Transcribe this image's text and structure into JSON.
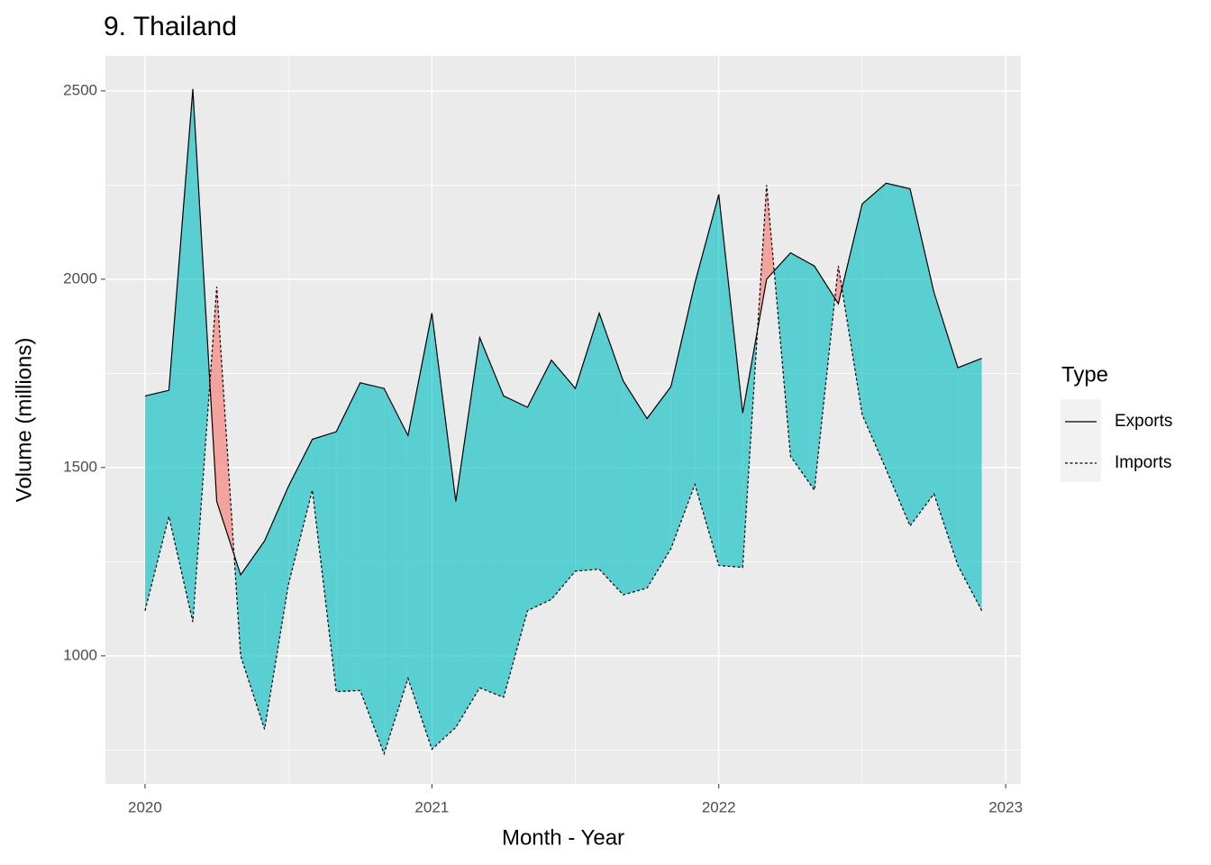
{
  "chart_data": {
    "type": "ribbon-line",
    "title": "9. Thailand",
    "x_label": "Month - Year",
    "y_label": "Volume (millions)",
    "x": [
      2020,
      2020.0833,
      2020.1667,
      2020.25,
      2020.3333,
      2020.4167,
      2020.5,
      2020.5833,
      2020.6667,
      2020.75,
      2020.8333,
      2020.9167,
      2021,
      2021.0833,
      2021.1667,
      2021.25,
      2021.3333,
      2021.4167,
      2021.5,
      2021.5833,
      2021.6667,
      2021.75,
      2021.8333,
      2021.9167,
      2022,
      2022.0833,
      2022.1667,
      2022.25,
      2022.3333,
      2022.4167,
      2022.5,
      2022.5833,
      2022.6667,
      2022.75,
      2022.8333,
      2022.9167
    ],
    "series": [
      {
        "name": "Exports",
        "color": "#000000",
        "dash": "solid",
        "fill": "#00BFC4",
        "values": [
          1690,
          1705,
          2505,
          1410,
          1215,
          1305,
          1450,
          1575,
          1595,
          1725,
          1710,
          1585,
          1910,
          1410,
          1845,
          1690,
          1660,
          1785,
          1710,
          1910,
          1730,
          1630,
          1715,
          1990,
          2225,
          1645,
          2000,
          2070,
          2035,
          1935,
          2200,
          2255,
          2240,
          1965,
          1765,
          1790
        ]
      },
      {
        "name": "Imports",
        "color": "#000000",
        "dash": "dashed",
        "fill": "#F8766D",
        "values": [
          1120,
          1370,
          1090,
          1980,
          1000,
          805,
          1190,
          1440,
          905,
          908,
          740,
          940,
          752,
          810,
          915,
          890,
          1120,
          1150,
          1225,
          1230,
          1162,
          1180,
          1285,
          1455,
          1240,
          1235,
          2250,
          1530,
          1440,
          2035,
          1640,
          1495,
          1345,
          1430,
          1240,
          1120
        ]
      }
    ],
    "fill_opacity": 0.62,
    "legend_title": "Type",
    "legend_position": "right",
    "xlim": [
      2019.862,
      2023.053
    ],
    "xticks": [
      2020,
      2021,
      2022,
      2023
    ],
    "minor_xticks": [
      2020.5,
      2021.5,
      2022.5
    ],
    "ylim": [
      660,
      2593
    ],
    "yticks": [
      1000,
      1500,
      2000,
      2500
    ],
    "minor_yticks": [
      750,
      1250,
      1750,
      2250
    ],
    "grid": true
  }
}
